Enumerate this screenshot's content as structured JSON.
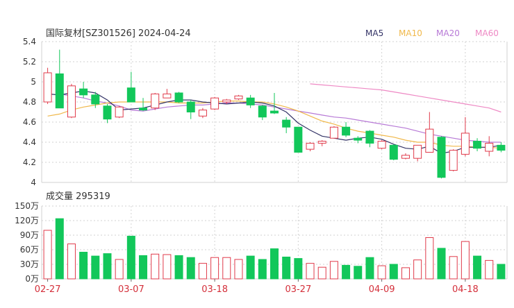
{
  "header": {
    "title": "国际复材[SZ301526] 2024-04-24",
    "legend": [
      {
        "label": "MA5",
        "color": "#333366"
      },
      {
        "label": "MA10",
        "color": "#f0b84a"
      },
      {
        "label": "MA20",
        "color": "#b779d6"
      },
      {
        "label": "MA60",
        "color": "#ee88c4"
      }
    ]
  },
  "colors": {
    "up": "#e03a4a",
    "down": "#12c75a",
    "grid": "#d2d2d2",
    "axis": "#666666",
    "date": "#d42f3a",
    "text": "#333333"
  },
  "volume_header": "成交量 295319",
  "chart_data": [
    {
      "type": "candlestick",
      "price_axis": {
        "ylim": [
          4.0,
          5.4
        ],
        "ticks": [
          "5.4",
          "5.2",
          "5",
          "4.8",
          "4.6",
          "4.4",
          "4.2",
          "4"
        ]
      },
      "x_labels": [
        {
          "index": 0,
          "label": "02-27"
        },
        {
          "index": 7,
          "label": "03-07"
        },
        {
          "index": 14,
          "label": "03-18"
        },
        {
          "index": 21,
          "label": "03-27"
        },
        {
          "index": 28,
          "label": "04-09"
        },
        {
          "index": 35,
          "label": "04-18"
        }
      ],
      "candles": [
        {
          "o": 4.8,
          "h": 5.14,
          "l": 4.78,
          "c": 5.09
        },
        {
          "o": 5.08,
          "h": 5.32,
          "l": 4.74,
          "c": 4.74
        },
        {
          "o": 4.65,
          "h": 4.98,
          "l": 4.64,
          "c": 4.96
        },
        {
          "o": 4.93,
          "h": 5.0,
          "l": 4.84,
          "c": 4.87
        },
        {
          "o": 4.87,
          "h": 4.9,
          "l": 4.74,
          "c": 4.78
        },
        {
          "o": 4.76,
          "h": 4.78,
          "l": 4.59,
          "c": 4.63
        },
        {
          "o": 4.65,
          "h": 4.76,
          "l": 4.64,
          "c": 4.75
        },
        {
          "o": 4.94,
          "h": 5.1,
          "l": 4.8,
          "c": 4.8
        },
        {
          "o": 4.74,
          "h": 4.84,
          "l": 4.71,
          "c": 4.72
        },
        {
          "o": 4.74,
          "h": 4.89,
          "l": 4.72,
          "c": 4.88
        },
        {
          "o": 4.84,
          "h": 4.93,
          "l": 4.84,
          "c": 4.88
        },
        {
          "o": 4.89,
          "h": 4.9,
          "l": 4.79,
          "c": 4.8
        },
        {
          "o": 4.8,
          "h": 4.82,
          "l": 4.63,
          "c": 4.7
        },
        {
          "o": 4.66,
          "h": 4.74,
          "l": 4.64,
          "c": 4.72
        },
        {
          "o": 4.73,
          "h": 4.85,
          "l": 4.72,
          "c": 4.84
        },
        {
          "o": 4.8,
          "h": 4.83,
          "l": 4.78,
          "c": 4.82
        },
        {
          "o": 4.83,
          "h": 4.87,
          "l": 4.82,
          "c": 4.86
        },
        {
          "o": 4.84,
          "h": 4.87,
          "l": 4.74,
          "c": 4.77
        },
        {
          "o": 4.76,
          "h": 4.77,
          "l": 4.62,
          "c": 4.65
        },
        {
          "o": 4.71,
          "h": 4.89,
          "l": 4.68,
          "c": 4.69
        },
        {
          "o": 4.62,
          "h": 4.65,
          "l": 4.49,
          "c": 4.55
        },
        {
          "o": 4.55,
          "h": 4.55,
          "l": 4.3,
          "c": 4.3
        },
        {
          "o": 4.33,
          "h": 4.4,
          "l": 4.31,
          "c": 4.39
        },
        {
          "o": 4.39,
          "h": 4.42,
          "l": 4.36,
          "c": 4.41
        },
        {
          "o": 4.44,
          "h": 4.56,
          "l": 4.44,
          "c": 4.55
        },
        {
          "o": 4.55,
          "h": 4.6,
          "l": 4.45,
          "c": 4.47
        },
        {
          "o": 4.44,
          "h": 4.46,
          "l": 4.39,
          "c": 4.42
        },
        {
          "o": 4.51,
          "h": 4.52,
          "l": 4.35,
          "c": 4.39
        },
        {
          "o": 4.34,
          "h": 4.42,
          "l": 4.33,
          "c": 4.41
        },
        {
          "o": 4.37,
          "h": 4.38,
          "l": 4.22,
          "c": 4.23
        },
        {
          "o": 4.24,
          "h": 4.29,
          "l": 4.23,
          "c": 4.27
        },
        {
          "o": 4.24,
          "h": 4.37,
          "l": 4.21,
          "c": 4.37
        },
        {
          "o": 4.3,
          "h": 4.7,
          "l": 4.3,
          "c": 4.53
        },
        {
          "o": 4.45,
          "h": 4.46,
          "l": 4.04,
          "c": 4.05
        },
        {
          "o": 4.12,
          "h": 4.33,
          "l": 4.11,
          "c": 4.32
        },
        {
          "o": 4.28,
          "h": 4.65,
          "l": 4.26,
          "c": 4.49
        },
        {
          "o": 4.41,
          "h": 4.44,
          "l": 4.31,
          "c": 4.34
        },
        {
          "o": 4.31,
          "h": 4.46,
          "l": 4.26,
          "c": 4.39
        },
        {
          "o": 4.37,
          "h": 4.4,
          "l": 4.3,
          "c": 4.32
        }
      ],
      "ma5": [
        4.88,
        4.87,
        4.89,
        4.91,
        4.89,
        4.82,
        4.72,
        4.73,
        4.74,
        4.77,
        4.8,
        4.82,
        4.82,
        4.8,
        4.79,
        4.78,
        4.79,
        4.8,
        4.79,
        4.76,
        4.7,
        4.59,
        4.52,
        4.46,
        4.44,
        4.42,
        4.44,
        4.45,
        4.43,
        4.38,
        4.34,
        4.33,
        4.36,
        4.29,
        4.31,
        4.35,
        4.35,
        4.35,
        4.37
      ],
      "ma10": [
        4.66,
        4.68,
        4.72,
        4.75,
        4.77,
        4.79,
        4.8,
        4.8,
        4.8,
        4.8,
        4.8,
        4.79,
        4.79,
        4.79,
        4.8,
        4.81,
        4.81,
        4.8,
        4.8,
        4.78,
        4.75,
        4.71,
        4.66,
        4.61,
        4.58,
        4.54,
        4.51,
        4.49,
        4.47,
        4.45,
        4.42,
        4.4,
        4.4,
        4.37,
        4.36,
        4.36,
        4.35,
        4.35,
        4.34
      ],
      "ma20": [
        null,
        4.88,
        4.86,
        4.84,
        4.81,
        4.79,
        4.76,
        4.72,
        4.71,
        4.73,
        4.75,
        4.76,
        4.77,
        4.77,
        4.78,
        4.79,
        4.79,
        4.78,
        4.77,
        4.75,
        4.73,
        4.71,
        4.69,
        4.67,
        4.65,
        4.64,
        4.62,
        4.6,
        4.58,
        4.56,
        4.54,
        4.51,
        4.48,
        4.46,
        4.44,
        4.42,
        4.41,
        4.4,
        4.4
      ],
      "ma60": [
        null,
        null,
        null,
        null,
        null,
        null,
        null,
        null,
        null,
        null,
        null,
        null,
        null,
        null,
        null,
        null,
        null,
        null,
        null,
        null,
        null,
        null,
        4.98,
        4.97,
        4.96,
        4.95,
        4.94,
        4.93,
        4.92,
        4.9,
        4.88,
        4.86,
        4.84,
        4.82,
        4.8,
        4.78,
        4.76,
        4.74,
        4.7
      ]
    },
    {
      "type": "bar",
      "title": "成交量 295319",
      "ylim": [
        0,
        150
      ],
      "ticks": [
        "150万",
        "120万",
        "90万",
        "60万",
        "30万",
        "0万"
      ],
      "values": [
        100,
        124,
        72,
        55,
        47,
        52,
        40,
        88,
        48,
        51,
        50,
        48,
        44,
        32,
        44,
        44,
        40,
        47,
        40,
        62,
        45,
        42,
        32,
        24,
        36,
        28,
        26,
        44,
        27,
        30,
        23,
        39,
        85,
        63,
        46,
        77,
        47,
        38,
        30
      ],
      "colors": [
        "up",
        "down",
        "up",
        "down",
        "down",
        "down",
        "up",
        "down",
        "down",
        "up",
        "up",
        "down",
        "down",
        "up",
        "up",
        "up",
        "up",
        "down",
        "down",
        "down",
        "down",
        "down",
        "up",
        "up",
        "up",
        "down",
        "down",
        "down",
        "up",
        "down",
        "up",
        "up",
        "up",
        "down",
        "up",
        "up",
        "down",
        "up",
        "down"
      ]
    }
  ]
}
